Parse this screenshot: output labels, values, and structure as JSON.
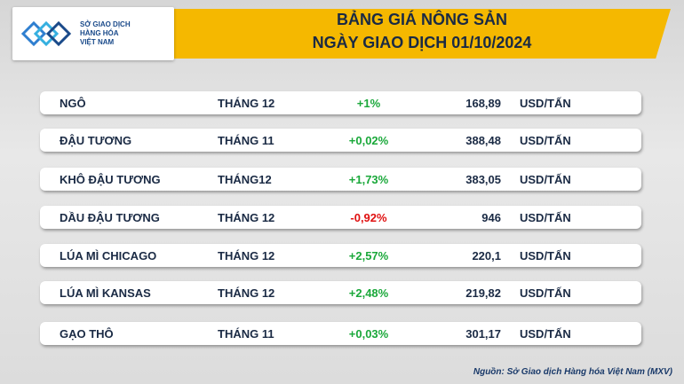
{
  "header": {
    "logo": [
      "SỞ GIAO DỊCH",
      "HÀNG HÓA",
      "VIỆT NAM"
    ],
    "title": [
      "BẢNG GIÁ NÔNG SẢN",
      "NGÀY GIAO DỊCH 01/10/2024"
    ]
  },
  "table": {
    "rows": [
      [
        "NGÔ",
        "THÁNG 12",
        "+1%",
        "168,89",
        "USD/TẤN"
      ],
      [
        "ĐẬU TƯƠNG",
        "THÁNG 11",
        "+0,02%",
        "388,48",
        "USD/TẤN"
      ],
      [
        "KHÔ ĐẬU TƯƠNG",
        "THÁNG12",
        "+1,73%",
        "383,05",
        "USD/TẤN"
      ],
      [
        "DẦU ĐẬU TƯƠNG",
        "THÁNG 12",
        "-0,92%",
        "946",
        "USD/TẤN"
      ],
      [
        "LÚA MÌ CHICAGO",
        "THÁNG 12",
        "+2,57%",
        "220,1",
        "USD/TẤN"
      ],
      [
        "LÚA MÌ KANSAS",
        "THÁNG 12",
        "+2,48%",
        "219,82",
        "USD/TẤN"
      ],
      [
        "GẠO THÔ",
        "THÁNG 11",
        "+0,03%",
        "301,17",
        "USD/TẤN"
      ]
    ],
    "change_colors": [
      "#1aa83a",
      "#1aa83a",
      "#1aa83a",
      "#e01010",
      "#1aa83a",
      "#1aa83a",
      "#1aa83a"
    ]
  },
  "source": "Nguồn: Sở Giao dịch Hàng hóa Việt Nam (MXV)"
}
